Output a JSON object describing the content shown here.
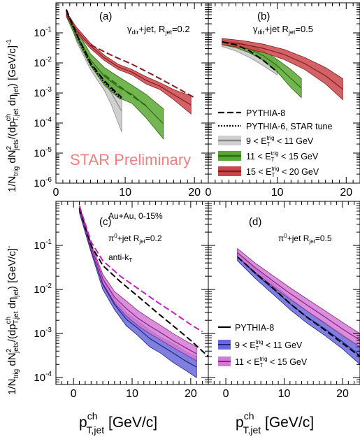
{
  "figure": {
    "ylabel_top": "1/N_trig dN²_jets/(dp^ch_T,jet dη_jet) [GeV/c]⁻¹",
    "ylabel_bottom": "1/N_trig dN²_jets/(dp^ch_T,jet dη_jet) [GeV/c]⁻¹",
    "xlabel_left": "p^ch_T,jet [GeV/c]",
    "xlabel_right": "p^ch_T,jet [GeV/c]",
    "watermark": "STAR Preliminary",
    "colors": {
      "gray": "#a8a8a8",
      "green": "#4c9a2a",
      "red": "#b8262b",
      "blue": "#3b3bbf",
      "magenta": "#c53dc5",
      "watermark": "#f08080"
    },
    "legend_top": [
      {
        "label": "PYTHIA-8",
        "style": "dash"
      },
      {
        "label": "PYTHIA-6, STAR tune",
        "style": "dot"
      },
      {
        "label": "9 < E_T^trig < 11 GeV",
        "style": "band-gray"
      },
      {
        "label": "11 < E_T^trig < 15 GeV",
        "style": "band-green"
      },
      {
        "label": "15 < E_T^trig < 20 GeV",
        "style": "band-red"
      }
    ],
    "legend_bottom": [
      {
        "label": "PYTHIA-8",
        "style": "dash"
      },
      {
        "label": "9 < E_T^trig < 11 GeV",
        "style": "band-blue"
      },
      {
        "label": "11 < E_T^trig < 15 GeV",
        "style": "band-magenta"
      }
    ]
  },
  "chart_data": [
    {
      "panel": "(a)",
      "type": "area",
      "annotation": "γ_dir+jet, R_jet=0.2",
      "xlim": [
        0,
        22
      ],
      "ylim": [
        1e-06,
        1
      ],
      "yscale": "log",
      "xticks": [
        0,
        10,
        20
      ],
      "yticks": [
        1e-06,
        1e-05,
        0.0001,
        0.001,
        0.01,
        0.1
      ],
      "series": [
        {
          "name": "9 < E_T^trig < 11 GeV",
          "color": "gray",
          "x": [
            1.5,
            3,
            5,
            7,
            8,
            9.5
          ],
          "lo": [
            0.5,
            0.05,
            0.006,
            0.0012,
            0.0004,
            5e-05
          ],
          "hi": [
            0.6,
            0.08,
            0.012,
            0.004,
            0.0025,
            0.0012
          ]
        },
        {
          "name": "11 < E_T^trig < 15 GeV",
          "color": "green",
          "x": [
            1.5,
            3,
            5,
            7,
            9,
            11,
            13,
            15.5
          ],
          "lo": [
            0.35,
            0.06,
            0.008,
            0.0018,
            0.0007,
            0.00045,
            0.00015,
            3e-05
          ],
          "hi": [
            0.45,
            0.12,
            0.02,
            0.007,
            0.0035,
            0.0018,
            0.0009,
            0.0003
          ]
        },
        {
          "name": "15 < E_T^trig < 20 GeV",
          "color": "red",
          "x": [
            1.5,
            3,
            5,
            7,
            9,
            11,
            13,
            15,
            17,
            19.5
          ],
          "lo": [
            0.35,
            0.1,
            0.03,
            0.012,
            0.006,
            0.004,
            0.002,
            0.0013,
            0.0006,
            0.0002
          ],
          "hi": [
            0.5,
            0.15,
            0.045,
            0.018,
            0.009,
            0.006,
            0.0035,
            0.0022,
            0.0013,
            0.0008
          ]
        },
        {
          "name": "PYTHIA-8",
          "color": "black",
          "style": "dash",
          "x": [
            1.5,
            3,
            5,
            7,
            9.5
          ],
          "y": [
            0.6,
            0.09,
            0.01,
            0.0025,
            0.0007
          ]
        },
        {
          "name": "PYTHIA-6, STAR tune",
          "color": "black",
          "style": "dot",
          "x": [
            1.5,
            3,
            5,
            7,
            9.5
          ],
          "y": [
            0.55,
            0.08,
            0.009,
            0.0022,
            0.0006
          ]
        },
        {
          "name": "PYTHIA-8 green",
          "color": "green",
          "style": "dash",
          "x": [
            7,
            9,
            11,
            13
          ],
          "y": [
            0.004,
            0.0018,
            0.0008,
            0.00038
          ]
        },
        {
          "name": "PYTHIA-8 red",
          "color": "red",
          "style": "dash",
          "x": [
            5,
            8,
            11,
            14,
            17,
            20
          ],
          "y": [
            0.04,
            0.018,
            0.009,
            0.004,
            0.0017,
            0.0007
          ]
        }
      ]
    },
    {
      "panel": "(b)",
      "type": "area",
      "annotation": "γ_dir+jet R_jet=0.5",
      "xlim": [
        0,
        22
      ],
      "ylim": [
        1e-06,
        1
      ],
      "yscale": "log",
      "xticks": [
        0,
        10,
        20
      ],
      "series": [
        {
          "name": "9 < E_T^trig < 11 GeV",
          "color": "gray",
          "x": [
            2,
            4,
            6,
            8,
            10
          ],
          "lo": [
            0.035,
            0.025,
            0.015,
            0.008,
            0.004
          ],
          "hi": [
            0.055,
            0.045,
            0.03,
            0.02,
            0.012
          ]
        },
        {
          "name": "11 < E_T^trig < 15 GeV",
          "color": "green",
          "x": [
            2,
            4,
            6,
            8,
            10,
            12,
            13.5
          ],
          "lo": [
            0.04,
            0.032,
            0.022,
            0.012,
            0.005,
            0.0015,
            0.0007
          ],
          "hi": [
            0.06,
            0.05,
            0.038,
            0.025,
            0.013,
            0.006,
            0.003
          ]
        },
        {
          "name": "15 < E_T^trig < 20 GeV",
          "color": "red",
          "x": [
            2,
            5,
            8,
            11,
            14,
            17,
            19.5
          ],
          "lo": [
            0.04,
            0.032,
            0.022,
            0.013,
            0.006,
            0.002,
            0.0006
          ],
          "hi": [
            0.065,
            0.055,
            0.042,
            0.028,
            0.015,
            0.007,
            0.003
          ]
        },
        {
          "name": "PYTHIA-8",
          "color": "black",
          "style": "dash",
          "x": [
            2,
            4,
            6,
            8,
            10
          ],
          "y": [
            0.05,
            0.04,
            0.025,
            0.012,
            0.005
          ]
        }
      ]
    },
    {
      "panel": "(c)",
      "type": "area",
      "annotation": "Au+Au, 0-15%; π0+jet R_jet=0.2; anti-k_T",
      "xlim": [
        -3,
        23
      ],
      "ylim": [
        7e-05,
        1
      ],
      "yscale": "log",
      "xticks": [
        0,
        10,
        20
      ],
      "yticks": [
        0.0001,
        0.001,
        0.01,
        0.1
      ],
      "series": [
        {
          "name": "9 < E_T^trig < 11 GeV",
          "color": "blue",
          "x": [
            1,
            3,
            5,
            7,
            9,
            11,
            13,
            15,
            17,
            19,
            21
          ],
          "lo": [
            0.55,
            0.07,
            0.01,
            0.0035,
            0.0015,
            0.0009,
            0.0005,
            0.00035,
            0.00022,
            0.00015,
            0.0001
          ],
          "hi": [
            0.7,
            0.09,
            0.017,
            0.006,
            0.003,
            0.0019,
            0.0012,
            0.0008,
            0.0006,
            0.0004,
            0.0003
          ]
        },
        {
          "name": "11 < E_T^trig < 15 GeV",
          "color": "magenta",
          "x": [
            1,
            3,
            5,
            7,
            9,
            11,
            13,
            15,
            17,
            19,
            21
          ],
          "lo": [
            0.6,
            0.08,
            0.014,
            0.005,
            0.0025,
            0.0015,
            0.001,
            0.0007,
            0.00048,
            0.00034,
            0.00024
          ],
          "hi": [
            0.8,
            0.11,
            0.022,
            0.009,
            0.0055,
            0.0033,
            0.0022,
            0.0015,
            0.001,
            0.0007,
            0.0005
          ]
        },
        {
          "name": "PYTHIA-8",
          "color": "black",
          "style": "dash",
          "x": [
            1,
            3,
            5,
            8,
            11,
            14,
            17,
            20,
            23
          ],
          "y": [
            0.7,
            0.1,
            0.035,
            0.015,
            0.007,
            0.0032,
            0.0015,
            0.0007,
            0.0003
          ]
        },
        {
          "name": "PYTHIA-8 magenta",
          "color": "magenta",
          "style": "dash",
          "x": [
            1,
            3,
            5,
            8,
            11,
            14,
            17,
            20,
            22
          ],
          "y": [
            0.8,
            0.12,
            0.045,
            0.02,
            0.0105,
            0.0055,
            0.003,
            0.0016,
            0.0011
          ]
        }
      ]
    },
    {
      "panel": "(d)",
      "type": "area",
      "annotation": "π0+jet R_jet=0.5",
      "xlim": [
        -3,
        23
      ],
      "ylim": [
        7e-05,
        1
      ],
      "yscale": "log",
      "xticks": [
        0,
        10,
        20
      ],
      "series": [
        {
          "name": "9 < E_T^trig < 11 GeV",
          "color": "blue",
          "x": [
            2,
            5,
            8,
            11,
            14,
            17,
            20,
            23
          ],
          "lo": [
            0.045,
            0.018,
            0.008,
            0.0035,
            0.0017,
            0.0009,
            0.00045,
            0.0002
          ],
          "hi": [
            0.07,
            0.03,
            0.014,
            0.0065,
            0.0032,
            0.0018,
            0.00095,
            0.0005
          ]
        },
        {
          "name": "11 < E_T^trig < 15 GeV",
          "color": "magenta",
          "x": [
            2,
            5,
            8,
            11,
            14,
            17,
            20,
            23
          ],
          "lo": [
            0.055,
            0.025,
            0.012,
            0.006,
            0.0032,
            0.0017,
            0.0009,
            0.0005
          ],
          "hi": [
            0.085,
            0.04,
            0.021,
            0.011,
            0.006,
            0.0033,
            0.0018,
            0.001
          ]
        },
        {
          "name": "PYTHIA-8",
          "color": "black",
          "style": "dash",
          "x": [
            2,
            5,
            8,
            11,
            14,
            17,
            20,
            23
          ],
          "y": [
            0.055,
            0.024,
            0.011,
            0.0048,
            0.0023,
            0.0012,
            0.0006,
            0.0003
          ]
        }
      ]
    }
  ]
}
